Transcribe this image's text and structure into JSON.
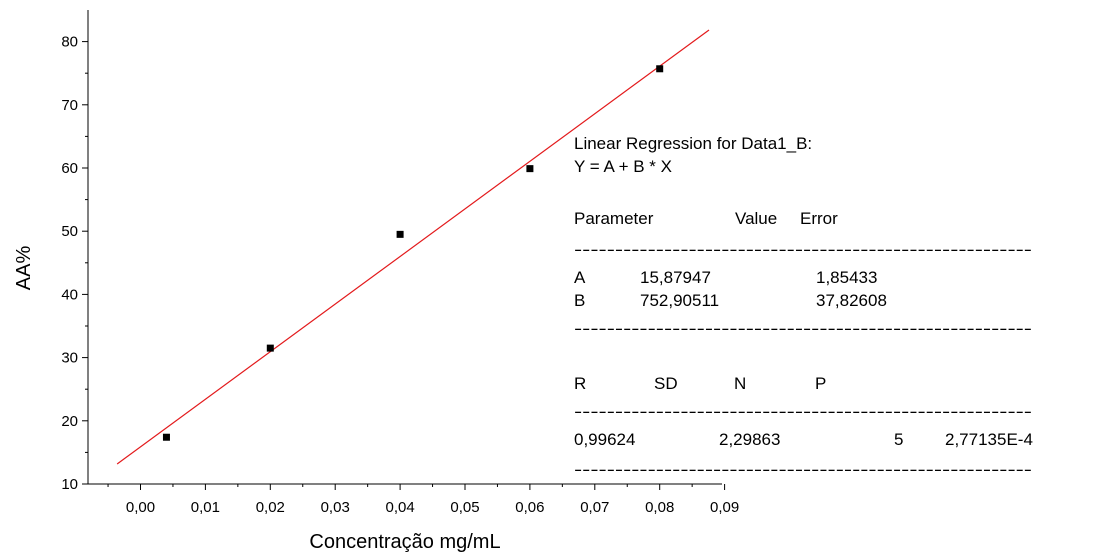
{
  "chart_data": {
    "type": "scatter",
    "xlabel": "Concentração mg/mL",
    "ylabel": "AA%",
    "xlim": [
      -0.004,
      0.09
    ],
    "ylim": [
      10,
      85
    ],
    "x_ticks": [
      0.0,
      0.01,
      0.02,
      0.03,
      0.04,
      0.05,
      0.06,
      0.07,
      0.08,
      0.09
    ],
    "x_tick_labels": [
      "0,00",
      "0,01",
      "0,02",
      "0,03",
      "0,04",
      "0,05",
      "0,06",
      "0,07",
      "0,08",
      "0,09"
    ],
    "y_ticks": [
      10,
      20,
      30,
      40,
      50,
      60,
      70,
      80
    ],
    "y_tick_labels": [
      "10",
      "20",
      "30",
      "40",
      "50",
      "60",
      "70",
      "80"
    ],
    "grid": false,
    "series": [
      {
        "x": [
          0.004,
          0.02,
          0.04,
          0.06,
          0.08
        ],
        "y": [
          17.4,
          31.5,
          49.5,
          59.9,
          75.7
        ],
        "marker": "square",
        "color": "#000000"
      }
    ],
    "fit": {
      "type": "linear",
      "intercept": 15.87947,
      "slope": 752.90511,
      "x_range": [
        -0.0036,
        0.0876
      ],
      "color": "#e31a1c"
    }
  },
  "regression_note": {
    "title": "Linear Regression for Data1_B:",
    "equation": "Y = A + B * X",
    "param_headers": [
      "Parameter",
      "Value",
      "Error"
    ],
    "divider": "--------------------------------------------------------",
    "params": [
      {
        "name": "A",
        "value": "15,87947",
        "error": "1,85433"
      },
      {
        "name": "B",
        "value": "752,90511",
        "error": "37,82608"
      }
    ],
    "stat_headers": [
      "R",
      "SD",
      "N",
      "P"
    ],
    "stats": [
      "0,99624",
      "2,29863",
      "5",
      "2,77135E-4"
    ]
  }
}
